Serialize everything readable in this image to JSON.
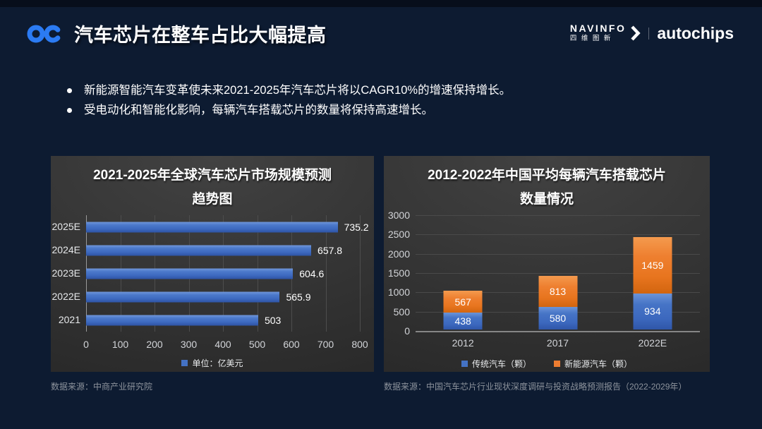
{
  "header": {
    "title": "汽车芯片在整车占比大幅提高",
    "brand": {
      "navinfo_en": "NAVINFO",
      "navinfo_cn": "四维图新",
      "autochips": "autochips"
    }
  },
  "bullets": [
    "新能源智能汽车变革使未来2021-2025年汽车芯片将以CAGR10%的增速保持增长。",
    "受电动化和智能化影响，每辆汽车搭载芯片的数量将保持高速增长。"
  ],
  "chart_data": [
    {
      "type": "bar",
      "orientation": "horizontal",
      "title_lines": [
        "2021-2025年全球汽车芯片市场规模预测",
        "趋势图"
      ],
      "categories": [
        "2025E",
        "2024E",
        "2023E",
        "2022E",
        "2021"
      ],
      "values": [
        735.2,
        657.8,
        604.6,
        565.9,
        503
      ],
      "xlim": [
        0,
        800
      ],
      "xticks": [
        0,
        100,
        200,
        300,
        400,
        500,
        600,
        700,
        800
      ],
      "bar_color": "#4472c4",
      "legend": [
        {
          "label": "单位：亿美元",
          "color": "#4472c4"
        }
      ],
      "source": "数据来源：中商产业研究院"
    },
    {
      "type": "bar",
      "stacked": true,
      "title_lines": [
        "2012-2022年中国平均每辆汽车搭载芯片",
        "数量情况"
      ],
      "categories": [
        "2012",
        "2017",
        "2022E"
      ],
      "series": [
        {
          "name": "传统汽车（颗）",
          "color": "#4472c4",
          "values": [
            438,
            580,
            934
          ]
        },
        {
          "name": "新能源汽车（颗）",
          "color": "#ed7d31",
          "values": [
            567,
            813,
            1459
          ]
        }
      ],
      "ylim": [
        0,
        3000
      ],
      "yticks": [
        0,
        500,
        1000,
        1500,
        2000,
        2500,
        3000
      ],
      "source": "数据来源：中国汽车芯片行业现状深度调研与投资战略预测报告（2022-2029年）"
    }
  ]
}
